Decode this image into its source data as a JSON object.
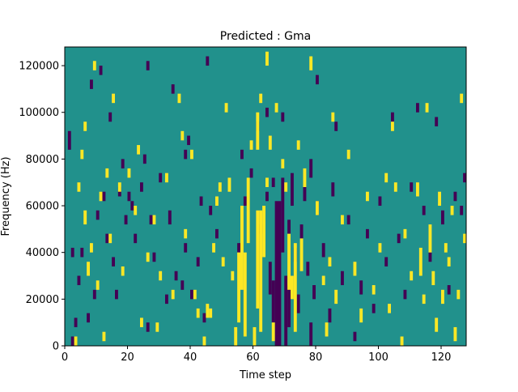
{
  "chart_data": {
    "type": "heatmap",
    "title": "Predicted : Gma",
    "xlabel": "Time step",
    "ylabel": "Frequency (Hz)",
    "xlim": [
      0,
      128
    ],
    "ylim": [
      0,
      128000
    ],
    "x_ticks": [
      {
        "value": 0,
        "label": "0"
      },
      {
        "value": 20,
        "label": "20"
      },
      {
        "value": 40,
        "label": "40"
      },
      {
        "value": 60,
        "label": "60"
      },
      {
        "value": 80,
        "label": "80"
      },
      {
        "value": 100,
        "label": "100"
      },
      {
        "value": 120,
        "label": "120"
      }
    ],
    "y_ticks": [
      {
        "value": 0,
        "label": "0"
      },
      {
        "value": 20000,
        "label": "20000"
      },
      {
        "value": 40000,
        "label": "40000"
      },
      {
        "value": 60000,
        "label": "60000"
      },
      {
        "value": 80000,
        "label": "80000"
      },
      {
        "value": 100000,
        "label": "100000"
      },
      {
        "value": 120000,
        "label": "120000"
      }
    ],
    "colormap": "viridis",
    "levels": {
      "low": -1,
      "mid": 0,
      "high": 1
    },
    "colors": {
      "low": "#440154",
      "mid": "#21918c",
      "high": "#fde725"
    },
    "grid": false,
    "cell_width_steps": 1,
    "cell_height_hz": 2000,
    "note_cells": "each entry: [time_step_start, frequency_start_hz, frequency_end_hz, level]",
    "cells": [
      [
        2,
        0,
        4000,
        -1
      ],
      [
        3,
        8000,
        12000,
        -1
      ],
      [
        2,
        38000,
        42000,
        -1
      ],
      [
        1,
        84000,
        92000,
        -1
      ],
      [
        4,
        26000,
        30000,
        -1
      ],
      [
        5,
        38000,
        42000,
        -1
      ],
      [
        7,
        10000,
        14000,
        -1
      ],
      [
        9,
        20000,
        24000,
        -1
      ],
      [
        11,
        116000,
        120000,
        -1
      ],
      [
        12,
        62000,
        66000,
        -1
      ],
      [
        10,
        54000,
        58000,
        -1
      ],
      [
        13,
        44000,
        48000,
        -1
      ],
      [
        15,
        34000,
        38000,
        -1
      ],
      [
        16,
        20000,
        24000,
        -1
      ],
      [
        17,
        64000,
        68000,
        -1
      ],
      [
        19,
        52000,
        56000,
        -1
      ],
      [
        21,
        58000,
        62000,
        -1
      ],
      [
        22,
        44000,
        48000,
        -1
      ],
      [
        24,
        66000,
        70000,
        -1
      ],
      [
        26,
        6000,
        10000,
        -1
      ],
      [
        27,
        52000,
        56000,
        -1
      ],
      [
        28,
        36000,
        40000,
        -1
      ],
      [
        30,
        70000,
        74000,
        -1
      ],
      [
        32,
        18000,
        22000,
        -1
      ],
      [
        33,
        52000,
        58000,
        -1
      ],
      [
        34,
        108000,
        112000,
        -1
      ],
      [
        35,
        28000,
        32000,
        -1
      ],
      [
        37,
        24000,
        28000,
        -1
      ],
      [
        38,
        40000,
        44000,
        -1
      ],
      [
        39,
        86000,
        90000,
        -1
      ],
      [
        40,
        20000,
        24000,
        -1
      ],
      [
        42,
        34000,
        38000,
        -1
      ],
      [
        43,
        60000,
        64000,
        -1
      ],
      [
        44,
        10000,
        14000,
        -1
      ],
      [
        46,
        56000,
        60000,
        -1
      ],
      [
        48,
        46000,
        50000,
        -1
      ],
      [
        25,
        78000,
        82000,
        -1
      ],
      [
        20,
        62000,
        66000,
        -1
      ],
      [
        18,
        76000,
        80000,
        -1
      ],
      [
        26,
        118000,
        122000,
        -1
      ],
      [
        14,
        96000,
        100000,
        -1
      ],
      [
        8,
        110000,
        114000,
        -1
      ],
      [
        45,
        120000,
        124000,
        -1
      ],
      [
        56,
        80000,
        84000,
        -1
      ],
      [
        55,
        40000,
        44000,
        -1
      ],
      [
        57,
        60000,
        64000,
        -1
      ],
      [
        59,
        72000,
        76000,
        -1
      ],
      [
        61,
        92000,
        96000,
        -1
      ],
      [
        62,
        48000,
        52000,
        -1
      ],
      [
        64,
        62000,
        66000,
        -1
      ],
      [
        64,
        98000,
        102000,
        -1
      ],
      [
        66,
        68000,
        72000,
        -1
      ],
      [
        67,
        0,
        62000,
        -1
      ],
      [
        68,
        0,
        62000,
        -1
      ],
      [
        69,
        40000,
        72000,
        -1
      ],
      [
        69,
        96000,
        100000,
        -1
      ],
      [
        66,
        10000,
        28000,
        -1
      ],
      [
        65,
        22000,
        36000,
        -1
      ],
      [
        70,
        0,
        30000,
        -1
      ],
      [
        71,
        8000,
        26000,
        -1
      ],
      [
        71,
        48000,
        54000,
        -1
      ],
      [
        72,
        60000,
        74000,
        -1
      ],
      [
        73,
        36000,
        42000,
        -1
      ],
      [
        74,
        14000,
        22000,
        -1
      ],
      [
        75,
        46000,
        52000,
        -1
      ],
      [
        76,
        62000,
        68000,
        -1
      ],
      [
        77,
        30000,
        36000,
        -1
      ],
      [
        78,
        0,
        10000,
        -1
      ],
      [
        78,
        72000,
        80000,
        -1
      ],
      [
        79,
        20000,
        26000,
        -1
      ],
      [
        80,
        56000,
        62000,
        -1
      ],
      [
        80,
        112000,
        116000,
        -1
      ],
      [
        82,
        38000,
        44000,
        -1
      ],
      [
        84,
        10000,
        16000,
        -1
      ],
      [
        85,
        64000,
        70000,
        -1
      ],
      [
        86,
        92000,
        96000,
        -1
      ],
      [
        88,
        26000,
        32000,
        -1
      ],
      [
        90,
        52000,
        56000,
        -1
      ],
      [
        92,
        2000,
        6000,
        -1
      ],
      [
        94,
        22000,
        28000,
        -1
      ],
      [
        96,
        46000,
        50000,
        -1
      ],
      [
        98,
        14000,
        18000,
        -1
      ],
      [
        100,
        60000,
        64000,
        -1
      ],
      [
        102,
        34000,
        38000,
        -1
      ],
      [
        104,
        96000,
        100000,
        -1
      ],
      [
        106,
        44000,
        48000,
        -1
      ],
      [
        108,
        20000,
        24000,
        -1
      ],
      [
        110,
        66000,
        70000,
        -1
      ],
      [
        112,
        100000,
        104000,
        -1
      ],
      [
        114,
        56000,
        60000,
        -1
      ],
      [
        116,
        36000,
        40000,
        -1
      ],
      [
        118,
        94000,
        98000,
        -1
      ],
      [
        120,
        52000,
        58000,
        -1
      ],
      [
        122,
        22000,
        26000,
        -1
      ],
      [
        124,
        62000,
        66000,
        -1
      ],
      [
        126,
        56000,
        60000,
        -1
      ],
      [
        127,
        70000,
        74000,
        -1
      ],
      [
        38,
        80000,
        84000,
        -1
      ],
      [
        9,
        118000,
        122000,
        1
      ],
      [
        5,
        80000,
        84000,
        1
      ],
      [
        4,
        66000,
        70000,
        1
      ],
      [
        6,
        52000,
        58000,
        1
      ],
      [
        7,
        30000,
        36000,
        1
      ],
      [
        8,
        40000,
        44000,
        1
      ],
      [
        10,
        24000,
        28000,
        1
      ],
      [
        11,
        62000,
        66000,
        1
      ],
      [
        12,
        2000,
        6000,
        1
      ],
      [
        14,
        44000,
        48000,
        1
      ],
      [
        15,
        104000,
        108000,
        1
      ],
      [
        17,
        66000,
        70000,
        1
      ],
      [
        18,
        30000,
        34000,
        1
      ],
      [
        20,
        72000,
        76000,
        1
      ],
      [
        22,
        56000,
        60000,
        1
      ],
      [
        24,
        8000,
        12000,
        1
      ],
      [
        26,
        36000,
        40000,
        1
      ],
      [
        28,
        52000,
        56000,
        1
      ],
      [
        30,
        28000,
        32000,
        1
      ],
      [
        32,
        70000,
        74000,
        1
      ],
      [
        34,
        20000,
        24000,
        1
      ],
      [
        36,
        104000,
        108000,
        1
      ],
      [
        38,
        46000,
        50000,
        1
      ],
      [
        40,
        80000,
        84000,
        1
      ],
      [
        42,
        12000,
        16000,
        1
      ],
      [
        44,
        0,
        4000,
        1
      ],
      [
        45,
        12000,
        18000,
        1
      ],
      [
        46,
        12000,
        16000,
        1
      ],
      [
        48,
        60000,
        64000,
        1
      ],
      [
        50,
        34000,
        38000,
        1
      ],
      [
        52,
        66000,
        72000,
        1
      ],
      [
        54,
        0,
        8000,
        1
      ],
      [
        55,
        10000,
        40000,
        1
      ],
      [
        56,
        24000,
        60000,
        1
      ],
      [
        57,
        4000,
        40000,
        1
      ],
      [
        58,
        44000,
        72000,
        1
      ],
      [
        59,
        84000,
        88000,
        1
      ],
      [
        60,
        0,
        8000,
        1
      ],
      [
        61,
        16000,
        58000,
        1
      ],
      [
        62,
        6000,
        58000,
        1
      ],
      [
        63,
        38000,
        60000,
        1
      ],
      [
        61,
        84000,
        100000,
        1
      ],
      [
        62,
        104000,
        108000,
        1
      ],
      [
        64,
        68000,
        72000,
        1
      ],
      [
        64,
        120000,
        126000,
        1
      ],
      [
        65,
        84000,
        90000,
        1
      ],
      [
        66,
        2000,
        10000,
        1
      ],
      [
        70,
        66000,
        70000,
        1
      ],
      [
        71,
        24000,
        48000,
        1
      ],
      [
        72,
        20000,
        30000,
        1
      ],
      [
        73,
        6000,
        44000,
        1
      ],
      [
        74,
        84000,
        88000,
        1
      ],
      [
        75,
        32000,
        46000,
        1
      ],
      [
        76,
        68000,
        76000,
        1
      ],
      [
        78,
        118000,
        124000,
        1
      ],
      [
        80,
        56000,
        62000,
        1
      ],
      [
        82,
        26000,
        30000,
        1
      ],
      [
        83,
        4000,
        10000,
        1
      ],
      [
        84,
        34000,
        38000,
        1
      ],
      [
        85,
        96000,
        100000,
        1
      ],
      [
        86,
        18000,
        24000,
        1
      ],
      [
        88,
        52000,
        56000,
        1
      ],
      [
        90,
        80000,
        84000,
        1
      ],
      [
        92,
        30000,
        36000,
        1
      ],
      [
        94,
        10000,
        16000,
        1
      ],
      [
        96,
        62000,
        66000,
        1
      ],
      [
        98,
        22000,
        26000,
        1
      ],
      [
        100,
        40000,
        44000,
        1
      ],
      [
        102,
        70000,
        74000,
        1
      ],
      [
        103,
        14000,
        18000,
        1
      ],
      [
        104,
        92000,
        96000,
        1
      ],
      [
        105,
        66000,
        70000,
        1
      ],
      [
        107,
        0,
        4000,
        1
      ],
      [
        108,
        46000,
        50000,
        1
      ],
      [
        110,
        28000,
        32000,
        1
      ],
      [
        112,
        64000,
        70000,
        1
      ],
      [
        113,
        30000,
        42000,
        1
      ],
      [
        114,
        18000,
        22000,
        1
      ],
      [
        115,
        100000,
        104000,
        1
      ],
      [
        116,
        40000,
        52000,
        1
      ],
      [
        117,
        26000,
        32000,
        1
      ],
      [
        118,
        6000,
        12000,
        1
      ],
      [
        119,
        60000,
        66000,
        1
      ],
      [
        120,
        18000,
        24000,
        1
      ],
      [
        121,
        40000,
        44000,
        1
      ],
      [
        122,
        34000,
        38000,
        1
      ],
      [
        123,
        56000,
        60000,
        1
      ],
      [
        124,
        2000,
        8000,
        1
      ],
      [
        125,
        20000,
        24000,
        1
      ],
      [
        126,
        104000,
        108000,
        1
      ],
      [
        127,
        44000,
        48000,
        1
      ],
      [
        3,
        0,
        4000,
        1
      ],
      [
        6,
        92000,
        96000,
        1
      ],
      [
        13,
        72000,
        76000,
        1
      ],
      [
        23,
        82000,
        86000,
        1
      ],
      [
        29,
        6000,
        10000,
        1
      ],
      [
        37,
        88000,
        92000,
        1
      ],
      [
        41,
        20000,
        24000,
        1
      ],
      [
        47,
        40000,
        44000,
        1
      ],
      [
        49,
        66000,
        70000,
        1
      ],
      [
        51,
        100000,
        104000,
        1
      ],
      [
        53,
        28000,
        32000,
        1
      ],
      [
        67,
        100000,
        104000,
        1
      ],
      [
        69,
        76000,
        80000,
        1
      ]
    ]
  }
}
